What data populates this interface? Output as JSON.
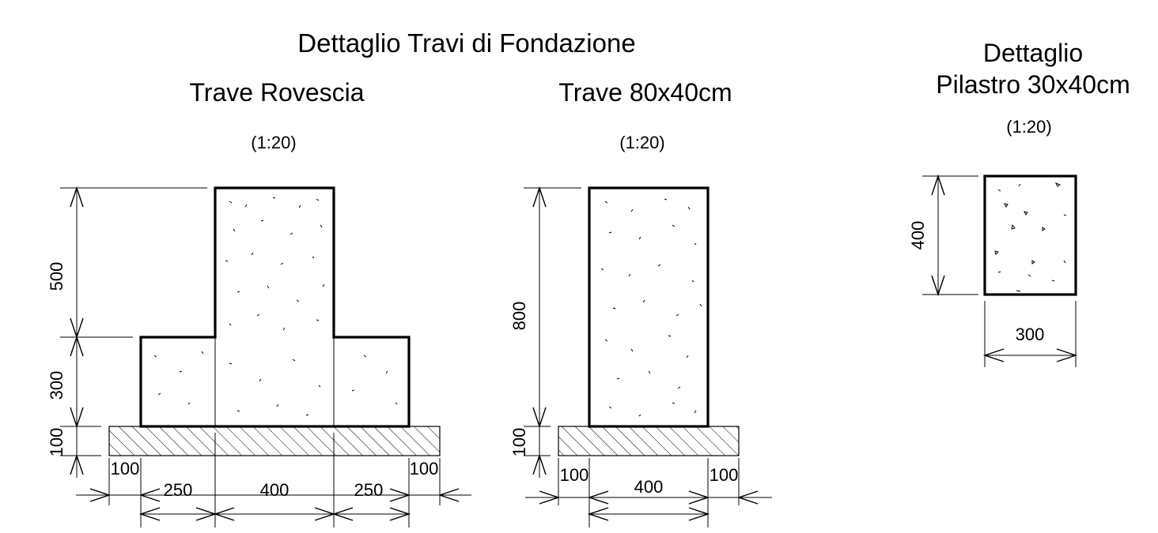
{
  "header": {
    "main_title": "Dettaglio Travi di Fondazione"
  },
  "trave_rovescia": {
    "title": "Trave Rovescia",
    "scale": "(1:20)",
    "dims": {
      "h_web": "500",
      "h_flange": "300",
      "h_base": "100",
      "w_left_offset": "100",
      "w_right_offset": "100",
      "w_left_flange": "250",
      "w_web": "400",
      "w_right_flange": "250"
    }
  },
  "trave_80x40": {
    "title": "Trave 80x40cm",
    "scale": "(1:20)",
    "dims": {
      "height": "800",
      "h_base": "100",
      "w_left_offset": "100",
      "width": "400",
      "w_right_offset": "100"
    }
  },
  "pilastro": {
    "title_line1": "Dettaglio",
    "title_line2": "Pilastro 30x40cm",
    "scale": "(1:20)",
    "dims": {
      "height": "400",
      "width": "300"
    }
  }
}
